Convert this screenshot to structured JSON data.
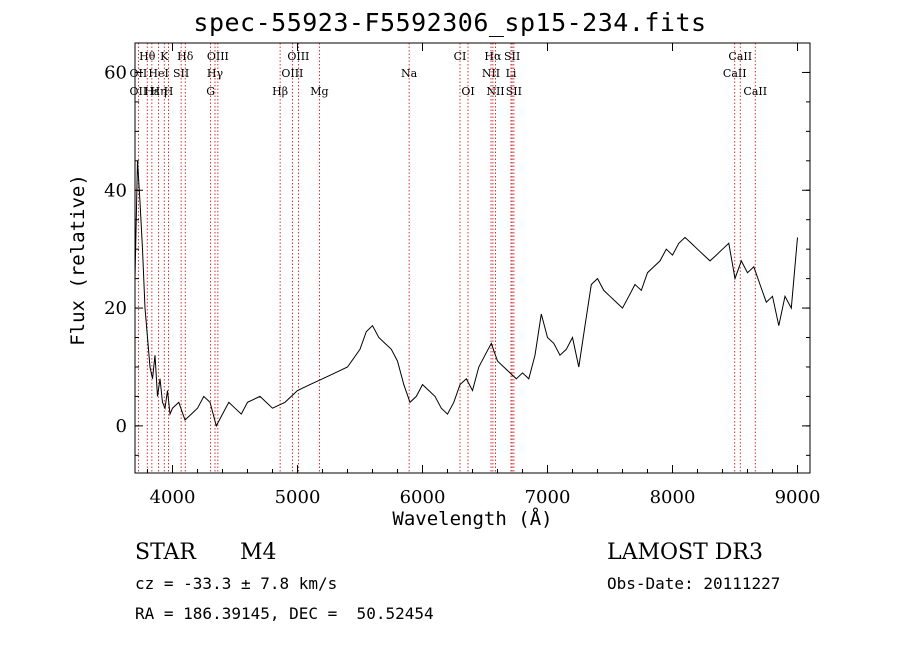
{
  "chart_data": {
    "type": "line",
    "title": "spec-55923-F5592306_sp15-234.fits",
    "xlabel": "Wavelength (Å)",
    "ylabel": "Flux (relative)",
    "xlim": [
      3700,
      9100
    ],
    "ylim": [
      -8,
      65
    ],
    "x_ticks": [
      4000,
      5000,
      6000,
      7000,
      8000,
      9000
    ],
    "y_ticks": [
      0,
      20,
      40,
      60
    ],
    "series": [
      {
        "x": [
          3700,
          3720,
          3740,
          3760,
          3780,
          3800,
          3820,
          3840,
          3860,
          3880,
          3900,
          3920,
          3940,
          3960,
          3980,
          4000,
          4050,
          4100,
          4150,
          4200,
          4250,
          4300,
          4350,
          4400,
          4450,
          4500,
          4550,
          4600,
          4700,
          4800,
          4900,
          5000,
          5100,
          5200,
          5300,
          5400,
          5500,
          5550,
          5600,
          5650,
          5700,
          5750,
          5800,
          5850,
          5900,
          5950,
          6000,
          6050,
          6100,
          6150,
          6200,
          6250,
          6300,
          6350,
          6400,
          6450,
          6500,
          6550,
          6600,
          6650,
          6700,
          6750,
          6800,
          6850,
          6900,
          6950,
          7000,
          7050,
          7100,
          7150,
          7200,
          7250,
          7300,
          7350,
          7400,
          7450,
          7500,
          7550,
          7600,
          7650,
          7700,
          7750,
          7800,
          7850,
          7900,
          7950,
          8000,
          8050,
          8100,
          8150,
          8200,
          8250,
          8300,
          8350,
          8400,
          8450,
          8500,
          8550,
          8600,
          8650,
          8700,
          8750,
          8800,
          8850,
          8900,
          8950,
          9000
        ],
        "values": [
          25,
          45,
          38,
          30,
          20,
          15,
          10,
          8,
          12,
          5,
          8,
          4,
          3,
          6,
          2,
          3,
          4,
          1,
          2,
          3,
          5,
          4,
          0,
          2,
          4,
          3,
          2,
          4,
          5,
          3,
          4,
          6,
          7,
          8,
          9,
          10,
          13,
          16,
          17,
          15,
          14,
          13,
          11,
          7,
          4,
          5,
          7,
          6,
          5,
          3,
          2,
          4,
          7,
          8,
          6,
          10,
          12,
          14,
          11,
          10,
          9,
          8,
          9,
          8,
          12,
          19,
          15,
          14,
          12,
          13,
          15,
          10,
          17,
          24,
          25,
          23,
          22,
          21,
          20,
          22,
          24,
          23,
          26,
          27,
          28,
          30,
          29,
          31,
          32,
          31,
          30,
          29,
          28,
          29,
          30,
          31,
          25,
          28,
          26,
          27,
          24,
          21,
          22,
          17,
          22,
          20,
          32
        ]
      }
    ],
    "line_labels": {
      "top": [
        {
          "text": "Hθ",
          "x": 3798
        },
        {
          "text": "K",
          "x": 3934
        },
        {
          "text": "Hδ",
          "x": 4102
        },
        {
          "text": "OIII",
          "x": 4363
        },
        {
          "text": "OIII",
          "x": 5007
        },
        {
          "text": "CI",
          "x": 6300
        },
        {
          "text": "Hα",
          "x": 6563
        },
        {
          "text": "SII",
          "x": 6717
        },
        {
          "text": "CaII",
          "x": 8542
        }
      ],
      "middle": [
        {
          "text": "OII",
          "x": 3727
        },
        {
          "text": "HeI",
          "x": 3889
        },
        {
          "text": "SII",
          "x": 4069
        },
        {
          "text": "Hγ",
          "x": 4340
        },
        {
          "text": "OIII",
          "x": 4959
        },
        {
          "text": "Na",
          "x": 5893
        },
        {
          "text": "NII",
          "x": 6548
        },
        {
          "text": "Li",
          "x": 6708
        },
        {
          "text": "CaII",
          "x": 8498
        }
      ],
      "bottom": [
        {
          "text": "OII",
          "x": 3727
        },
        {
          "text": "Hε",
          "x": 3835
        },
        {
          "text": "Hη",
          "x": 3889
        },
        {
          "text": "H",
          "x": 3968
        },
        {
          "text": "G",
          "x": 4305
        },
        {
          "text": "Hβ",
          "x": 4861
        },
        {
          "text": "Mg",
          "x": 5175
        },
        {
          "text": "OI",
          "x": 6364
        },
        {
          "text": "NII",
          "x": 6584
        },
        {
          "text": "SII",
          "x": 6731
        },
        {
          "text": "CaII",
          "x": 8662
        }
      ]
    },
    "line_colors": {
      "spectrum": "#000000",
      "markers": "#cc0000",
      "axes": "#000000"
    }
  },
  "info": {
    "class": "STAR",
    "subclass": "M4",
    "survey": "LAMOST DR3",
    "cz": "cz = -33.3 ± 7.8 km/s",
    "obs_date": "Obs-Date: 20111227",
    "coords": "RA = 186.39145, DEC =  50.52454"
  }
}
